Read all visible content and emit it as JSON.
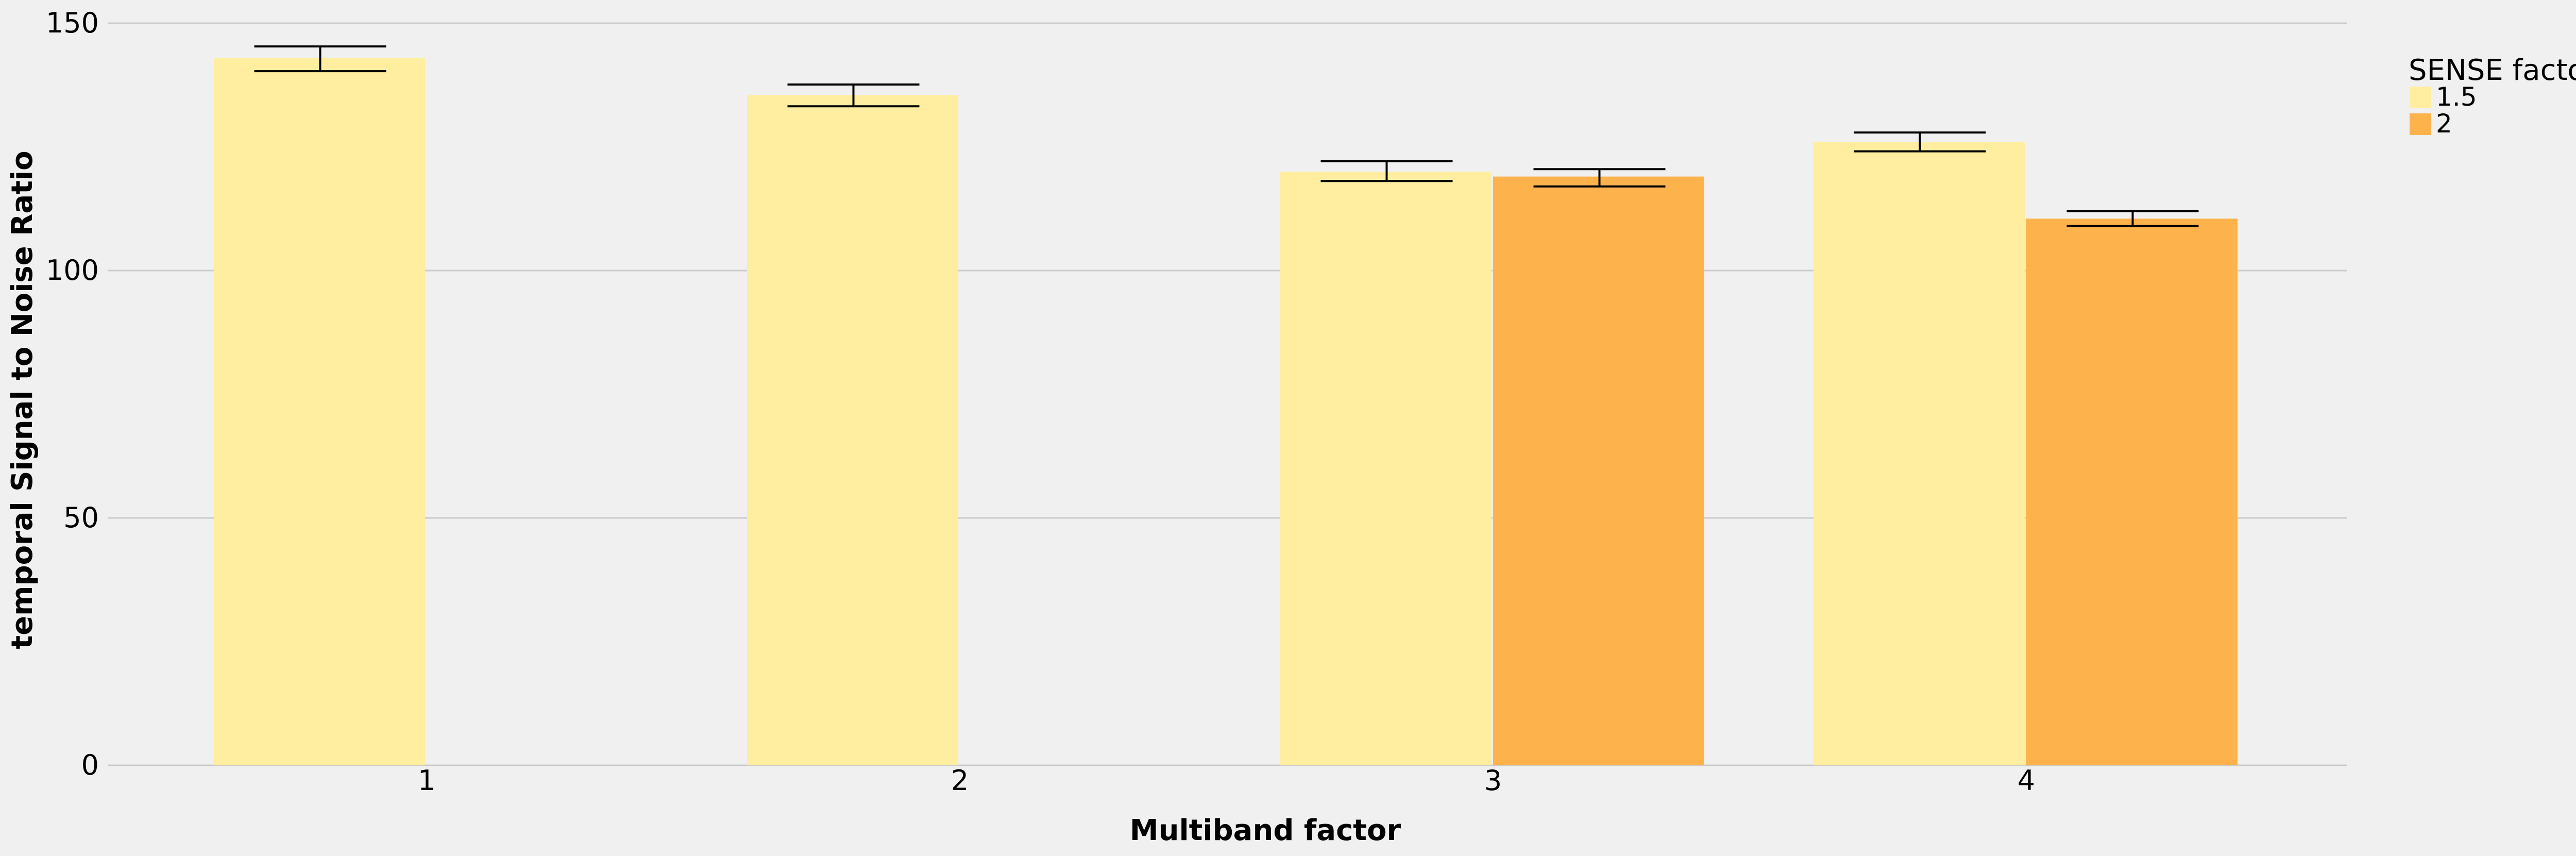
{
  "chart_data": {
    "type": "bar",
    "title": "",
    "xlabel": "Multiband factor",
    "ylabel": "temporal Signal to Noise Ratio",
    "categories": [
      "1",
      "2",
      "3",
      "4"
    ],
    "ylim": [
      0,
      150
    ],
    "yticks": [
      0,
      50,
      100,
      150
    ],
    "grid": true,
    "legend": {
      "title": "SENSE factor",
      "placement": "right"
    },
    "series": [
      {
        "name": "1.5",
        "color": "#ffeda0",
        "values": [
          143,
          135.5,
          120,
          126
        ],
        "err_low": [
          140.3,
          133.2,
          118.1,
          124.1
        ],
        "err_high": [
          145.3,
          137.6,
          122.1,
          127.9
        ]
      },
      {
        "name": "2",
        "color": "#feb24c",
        "values": [
          null,
          null,
          119,
          110.5
        ],
        "err_low": [
          null,
          null,
          117,
          109
        ],
        "err_high": [
          null,
          null,
          120.5,
          112
        ]
      }
    ]
  }
}
